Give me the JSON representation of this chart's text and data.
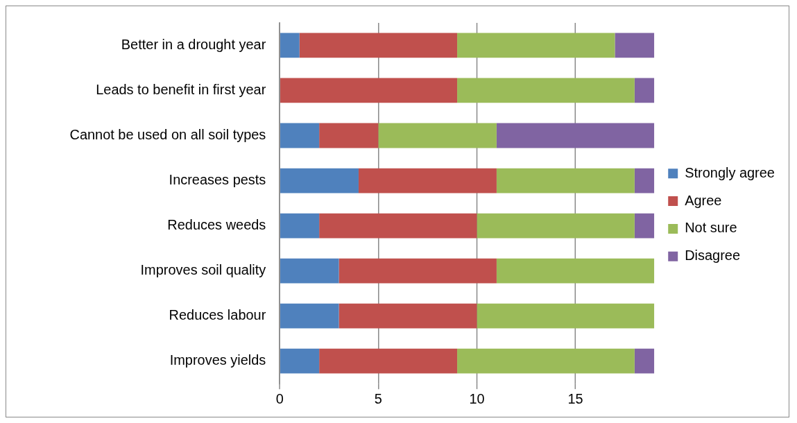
{
  "chart_data": {
    "type": "bar",
    "orientation": "horizontal",
    "stacked": true,
    "categories": [
      "Better in a drought year",
      "Leads to benefit in first year",
      "Cannot be used on all soil types",
      "Increases pests",
      "Reduces weeds",
      "Improves soil quality",
      "Reduces labour",
      "Improves yields"
    ],
    "series": [
      {
        "name": "Strongly agree",
        "color": "#4f81bd",
        "values": [
          1,
          0,
          2,
          4,
          2,
          3,
          3,
          2
        ]
      },
      {
        "name": "Agree",
        "color": "#c0504d",
        "values": [
          8,
          9,
          3,
          7,
          8,
          8,
          7,
          7
        ]
      },
      {
        "name": "Not sure",
        "color": "#9bbb59",
        "values": [
          8,
          9,
          6,
          7,
          8,
          8,
          9,
          9
        ]
      },
      {
        "name": "Disagree",
        "color": "#8064a2",
        "values": [
          2,
          1,
          8,
          1,
          1,
          0,
          0,
          1
        ]
      }
    ],
    "xlim": [
      0,
      19
    ],
    "xticks": [
      0,
      5,
      10,
      15
    ],
    "grid": "x",
    "legend": "right"
  }
}
